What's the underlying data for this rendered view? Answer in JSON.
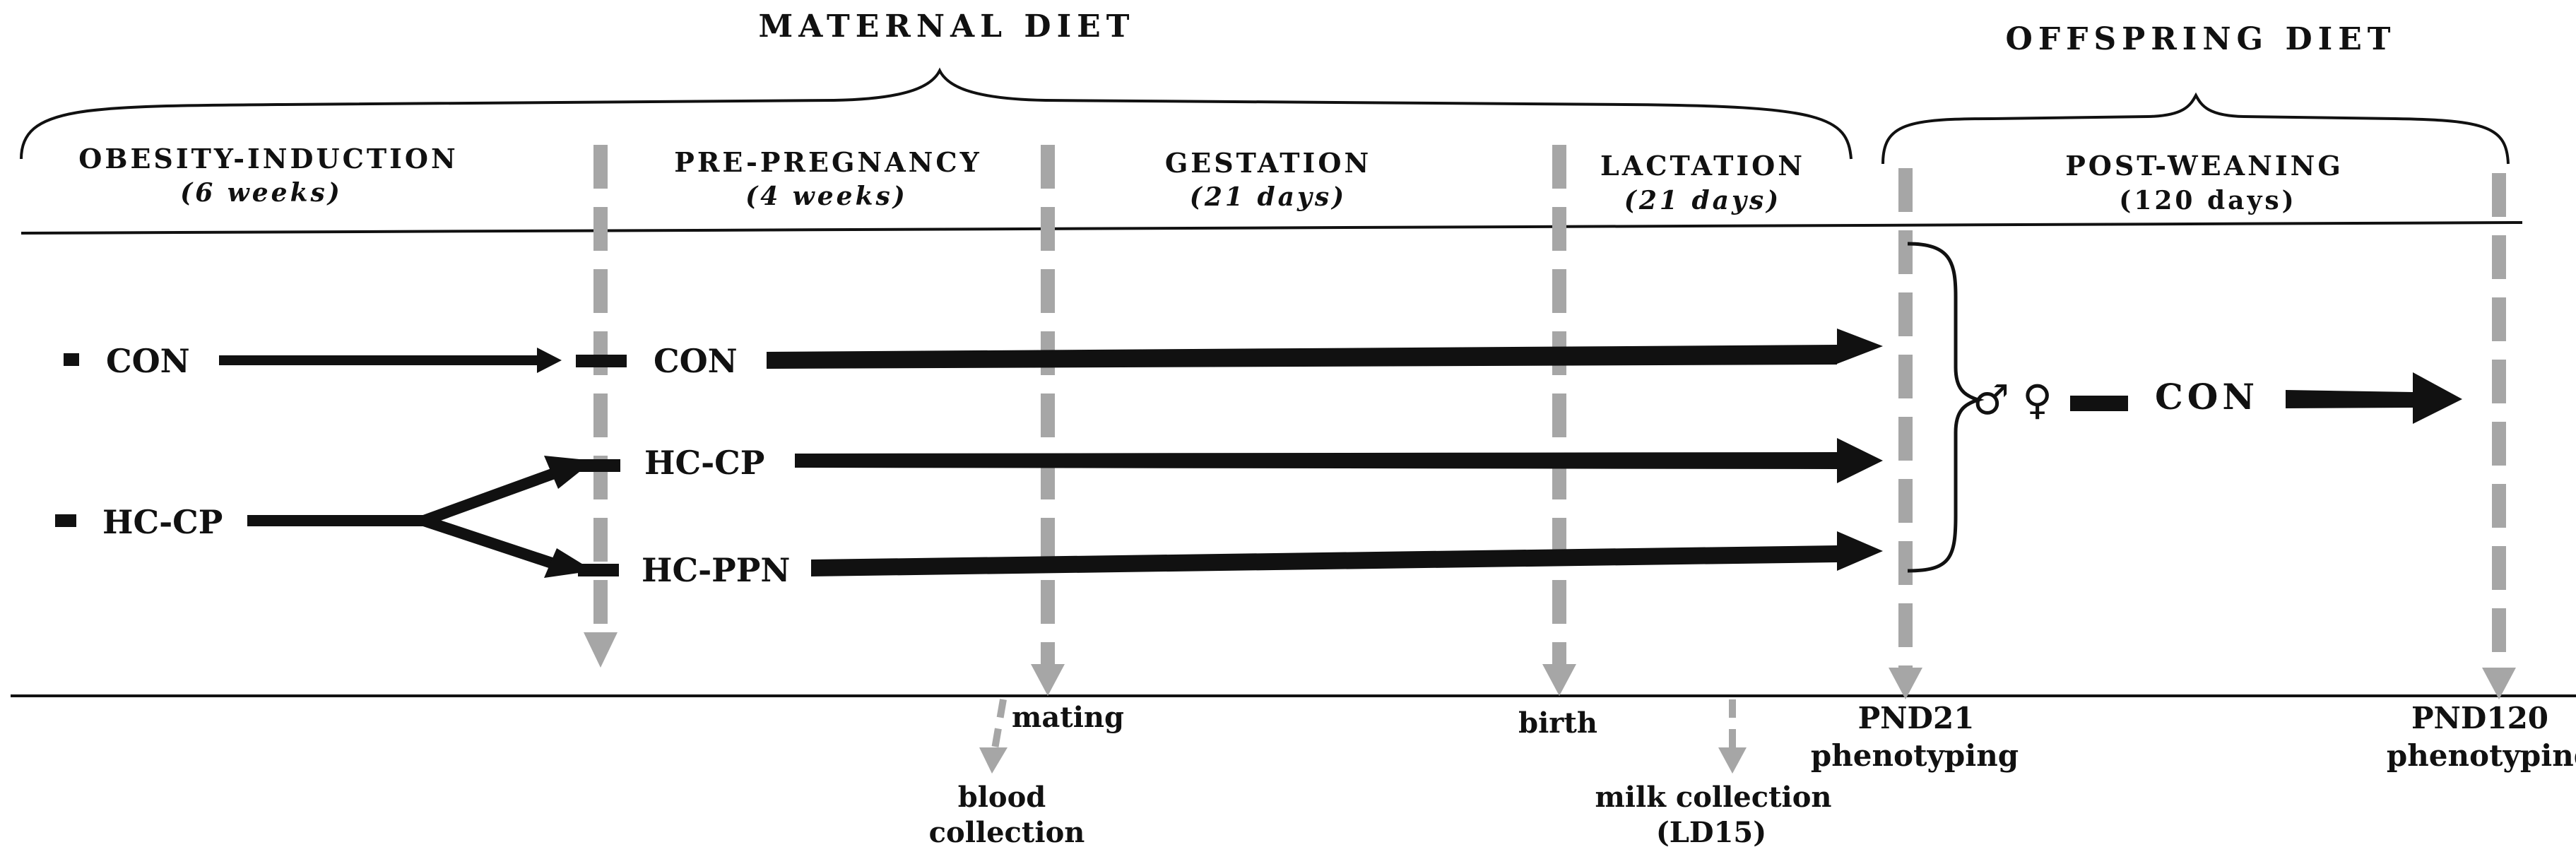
{
  "headers": {
    "maternal_diet": "MATERNAL DIET",
    "offspring_diet": "OFFSPRING DIET"
  },
  "phases": [
    {
      "name": "OBESITY-INDUCTION",
      "duration": "(6 weeks)"
    },
    {
      "name": "PRE-PREGNANCY",
      "duration": "(4 weeks)"
    },
    {
      "name": "GESTATION",
      "duration": "(21 days)"
    },
    {
      "name": "LACTATION",
      "duration": "(21 days)"
    },
    {
      "name": "POST-WEANING",
      "duration": "(120 days)"
    }
  ],
  "groups": {
    "con_start": "CON",
    "hccp_start": "HC-CP",
    "con_mid": "CON",
    "hccp_mid": "HC-CP",
    "hcppn_mid": "HC-PPN",
    "sex_symbols": "♂ ♀",
    "offspring_con": "CON"
  },
  "events": {
    "mating": "mating",
    "blood_collection_1": "blood",
    "blood_collection_2": "collection",
    "birth": "birth",
    "milk_collection_1": "milk collection",
    "milk_collection_2": "(LD15)",
    "pnd21_1": "PND21",
    "pnd21_2": "phenotyping",
    "pnd120_1": "PND120",
    "pnd120_2": "phenotyping"
  },
  "colors": {
    "ink": "#111111",
    "dashed_gray": "#a6a6a6"
  }
}
